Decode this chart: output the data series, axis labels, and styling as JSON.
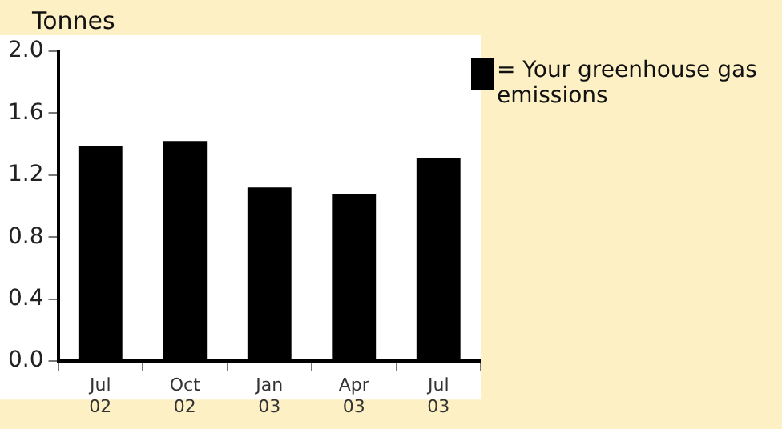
{
  "chart_data": {
    "type": "bar",
    "ylabel": "Tonnes",
    "categories": [
      "Jul 02",
      "Oct 02",
      "Jan 03",
      "Apr 03",
      "Jul 03"
    ],
    "series": [
      {
        "name": "= Your greenhouse gas emissions",
        "color": "#000000",
        "values": [
          1.39,
          1.42,
          1.12,
          1.08,
          1.31
        ]
      }
    ],
    "ylim": [
      0,
      2
    ],
    "yticks": [
      {
        "value": 0,
        "label": "0.0"
      },
      {
        "value": 0.4,
        "label": "0.4"
      },
      {
        "value": 0.8,
        "label": "0.8"
      },
      {
        "value": 1.2,
        "label": "1.2"
      },
      {
        "value": 1.6,
        "label": "1.6"
      },
      {
        "value": 2,
        "label": "2.0"
      }
    ],
    "grid": false,
    "legend": "right"
  }
}
